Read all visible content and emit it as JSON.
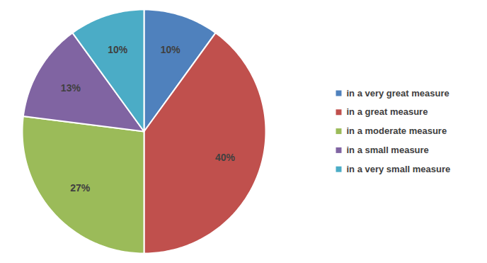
{
  "chart_data": {
    "type": "pie",
    "categories": [
      "in a very great measure",
      "in a great measure",
      "in a moderate measure",
      "in a small measure",
      "in a very small measure"
    ],
    "values": [
      10,
      40,
      27,
      13,
      10
    ],
    "value_labels": [
      "10%",
      "40%",
      "27%",
      "13%",
      "10%"
    ],
    "colors": [
      "#4f81bd",
      "#c0504d",
      "#9bbb59",
      "#8064a2",
      "#4bacc6"
    ],
    "data_labels": true,
    "legend": "right"
  }
}
